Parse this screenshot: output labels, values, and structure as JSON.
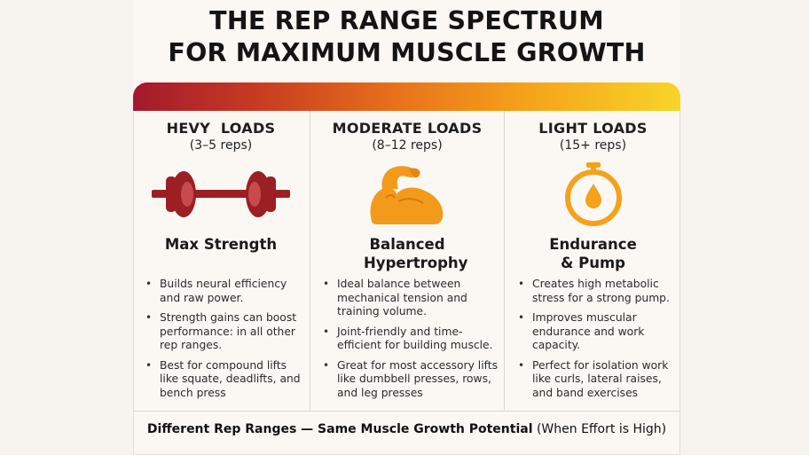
{
  "title": {
    "line1": "THE REP RANGE SPECTRUM",
    "line2": "FOR MAXIMUM MUSCLE GROWTH"
  },
  "colors": {
    "banner_start": "#a3192c",
    "banner_end": "#f8d429",
    "heavy_icon": "#9c1f24",
    "moderate_icon": "#f39a1a",
    "light_icon": "#f4a21a"
  },
  "columns": [
    {
      "heading": "HEVY  LOADS",
      "reps": "(3–5 reps)",
      "icon": "barbell-icon",
      "subtitle": "Max Strength",
      "bullets": [
        "Builds neural efficiency and raw power.",
        "Strength gains can boost performance: in all other rep ranges.",
        "Best for compound lifts like squate, deadlifts, and bench press"
      ]
    },
    {
      "heading": "MODERATE LOADS",
      "reps": "(8–12 reps)",
      "icon": "flexed-bicep-icon",
      "subtitle": "Balanced Hypertrophy",
      "bullets": [
        "Ideal balance between mechanical tension and training volume.",
        "Joint-friendly and time-efficient for building muscle.",
        "Great for most accessory lifts like dumbbell presses, rows, and leg presses"
      ]
    },
    {
      "heading": "LIGHT LOADS",
      "reps": "(15+ reps)",
      "icon": "stopwatch-drop-icon",
      "subtitle": "Endurance & Pump",
      "bullets": [
        "Creates high metabolic stress for a strong pump.",
        "Improves muscular endurance and work capacity.",
        "Perfect for isolation work like curls, lateral raises, and band exercises"
      ]
    }
  ],
  "footer": {
    "bold": "Different Rep Ranges — Same Muscle Growth Potential",
    "rest": "(When Effort is High)"
  }
}
